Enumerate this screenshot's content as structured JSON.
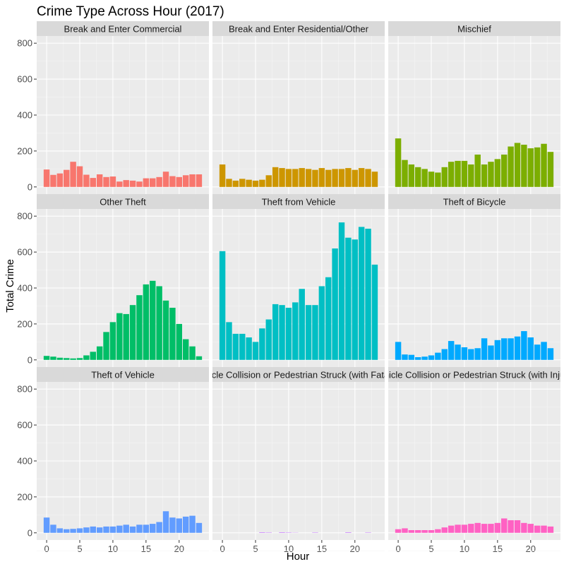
{
  "chart_data": {
    "type": "bar",
    "title": "Crime Type Across Hour (2017)",
    "xlabel": "Hour",
    "ylabel": "Total Crime",
    "x": [
      0,
      1,
      2,
      3,
      4,
      5,
      6,
      7,
      8,
      9,
      10,
      11,
      12,
      13,
      14,
      15,
      16,
      17,
      18,
      19,
      20,
      21,
      22,
      23
    ],
    "xticks": [
      0,
      5,
      10,
      15,
      20
    ],
    "yticks": [
      0,
      200,
      400,
      600,
      800
    ],
    "xlim": [
      -1.5,
      24.5
    ],
    "ylim": [
      -40,
      840
    ],
    "grid": true,
    "facets": [
      {
        "name": "Break and Enter Commercial",
        "color": "#F8766D",
        "values": [
          97,
          67,
          75,
          95,
          140,
          115,
          68,
          50,
          70,
          55,
          58,
          30,
          38,
          35,
          30,
          48,
          48,
          55,
          85,
          60,
          55,
          65,
          70,
          70
        ]
      },
      {
        "name": "Break and Enter Residential/Other",
        "color": "#CD9600",
        "values": [
          125,
          45,
          35,
          45,
          40,
          35,
          40,
          65,
          110,
          105,
          100,
          100,
          105,
          100,
          95,
          105,
          95,
          100,
          100,
          105,
          95,
          105,
          100,
          85
        ]
      },
      {
        "name": "Mischief",
        "color": "#7CAE00",
        "values": [
          270,
          150,
          125,
          110,
          100,
          85,
          80,
          110,
          140,
          145,
          145,
          125,
          180,
          125,
          140,
          155,
          180,
          225,
          245,
          235,
          215,
          220,
          240,
          195
        ]
      },
      {
        "name": "Other Theft",
        "color": "#00BE67",
        "values": [
          22,
          18,
          12,
          10,
          8,
          10,
          25,
          45,
          75,
          155,
          210,
          260,
          255,
          305,
          360,
          420,
          440,
          410,
          330,
          290,
          200,
          115,
          75,
          20
        ]
      },
      {
        "name": "Theft from Vehicle",
        "color": "#00BFC4",
        "values": [
          605,
          210,
          145,
          145,
          125,
          100,
          175,
          225,
          310,
          305,
          290,
          320,
          395,
          305,
          305,
          410,
          460,
          620,
          765,
          680,
          670,
          740,
          730,
          530
        ]
      },
      {
        "name": "Theft of Bicycle",
        "color": "#00A9FF",
        "values": [
          100,
          30,
          28,
          15,
          18,
          25,
          40,
          60,
          105,
          85,
          70,
          60,
          65,
          120,
          80,
          110,
          120,
          120,
          130,
          160,
          125,
          85,
          100,
          65
        ]
      },
      {
        "name": "Theft of Vehicle",
        "color": "#619CFF",
        "values": [
          85,
          45,
          25,
          20,
          22,
          25,
          30,
          35,
          30,
          35,
          35,
          40,
          45,
          35,
          45,
          45,
          50,
          60,
          120,
          85,
          80,
          90,
          95,
          55
        ]
      },
      {
        "name": "Vehicle Collision or Pedestrian Struck (with Fatality)",
        "color": "#C77CFF",
        "values": [
          0,
          0,
          0,
          0,
          0,
          0,
          3,
          2,
          0,
          3,
          2,
          1,
          0,
          0,
          2,
          0,
          0,
          0,
          0,
          3,
          0,
          0,
          2,
          0
        ]
      },
      {
        "name": "Vehicle Collision or Pedestrian Struck (with Injury)",
        "color": "#FF61C3",
        "values": [
          20,
          25,
          15,
          15,
          15,
          15,
          20,
          30,
          40,
          45,
          45,
          50,
          55,
          50,
          50,
          55,
          80,
          70,
          70,
          55,
          50,
          40,
          40,
          35
        ]
      }
    ]
  }
}
